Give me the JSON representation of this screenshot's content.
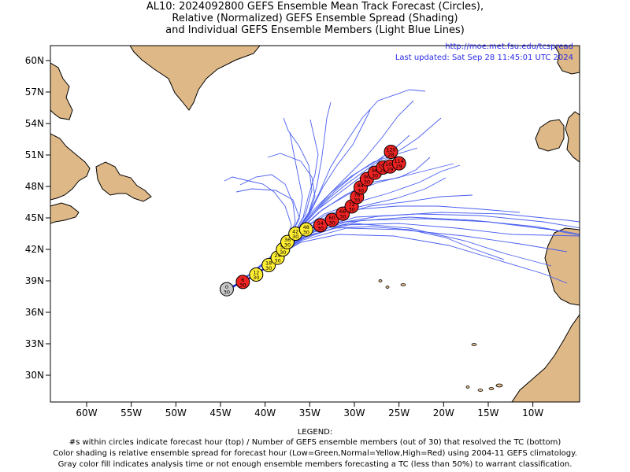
{
  "header": {
    "title_line1": "AL10: 2024092800 GEFS Ensemble Mean Track Forecast (Circles),",
    "title_line2": "Relative (Normalized) GEFS Ensemble Spread (Shading)",
    "title_line3": "and Individual GEFS Ensemble Members (Light Blue Lines)"
  },
  "credits": {
    "url": "http://moe.met.fsu.edu/tcspread",
    "updated": "Last updated: Sat Sep 28 11:45:01 UTC 2024"
  },
  "axes": {
    "lat_labels": [
      "60N",
      "57N",
      "54N",
      "51N",
      "48N",
      "45N",
      "42N",
      "39N",
      "36N",
      "33N",
      "30N"
    ],
    "lon_labels": [
      "60W",
      "55W",
      "50W",
      "45W",
      "40W",
      "35W",
      "30W",
      "25W",
      "20W",
      "15W",
      "10W"
    ]
  },
  "colors": {
    "land": "#deb887",
    "ocean": "#ffffff",
    "member_line": "#4a5ff0",
    "mean_line": "#1a24c8",
    "low_spread": "#3cb043",
    "normal_spread": "#ffee33",
    "high_spread": "#ee2222",
    "analysis_gray": "#c8c8c8"
  },
  "forecast_points": [
    {
      "hour": "0",
      "members": "30",
      "spread": "gray",
      "lon": -44.3,
      "lat": 38.2
    },
    {
      "hour": "6",
      "members": "30",
      "spread": "high",
      "lon": -42.5,
      "lat": 38.9
    },
    {
      "hour": "12",
      "members": "30",
      "spread": "normal",
      "lon": -41.0,
      "lat": 39.6
    },
    {
      "hour": "18",
      "members": "30",
      "spread": "normal",
      "lon": -39.6,
      "lat": 40.5
    },
    {
      "hour": "24",
      "members": "30",
      "spread": "normal",
      "lon": -38.6,
      "lat": 41.2
    },
    {
      "hour": "30",
      "members": "30",
      "spread": "normal",
      "lon": -38.0,
      "lat": 42.0
    },
    {
      "hour": "36",
      "members": "30",
      "spread": "normal",
      "lon": -37.5,
      "lat": 42.7
    },
    {
      "hour": "42",
      "members": "30",
      "spread": "normal",
      "lon": -36.6,
      "lat": 43.5
    },
    {
      "hour": "48",
      "members": "30",
      "spread": "normal",
      "lon": -35.4,
      "lat": 43.9
    },
    {
      "hour": "54",
      "members": "30",
      "spread": "high",
      "lon": -33.8,
      "lat": 44.3
    },
    {
      "hour": "60",
      "members": "30",
      "spread": "high",
      "lon": -32.5,
      "lat": 44.8
    },
    {
      "hour": "66",
      "members": "30",
      "spread": "high",
      "lon": -31.3,
      "lat": 45.4
    },
    {
      "hour": "72",
      "members": "30",
      "spread": "high",
      "lon": -30.3,
      "lat": 46.1
    },
    {
      "hour": "78",
      "members": "30",
      "spread": "high",
      "lon": -29.7,
      "lat": 47.0
    },
    {
      "hour": "84",
      "members": "30",
      "spread": "high",
      "lon": -29.3,
      "lat": 47.9
    },
    {
      "hour": "90",
      "members": "30",
      "spread": "high",
      "lon": -28.6,
      "lat": 48.7
    },
    {
      "hour": "96",
      "members": "30",
      "spread": "high",
      "lon": -27.7,
      "lat": 49.3
    },
    {
      "hour": "102",
      "members": "29",
      "spread": "high",
      "lon": -26.8,
      "lat": 49.8
    },
    {
      "hour": "108",
      "members": "29",
      "spread": "high",
      "lon": -26.0,
      "lat": 49.9
    },
    {
      "hour": "114",
      "members": "29",
      "spread": "high",
      "lon": -25.0,
      "lat": 50.2
    },
    {
      "hour": "120",
      "members": "28",
      "spread": "high",
      "lon": -25.9,
      "lat": 51.3
    }
  ],
  "legend": {
    "heading": "LEGEND:",
    "line1": "#s within circles indicate forecast hour (top) / Number of GEFS ensemble members (out of 30) that resolved the TC (bottom)",
    "line2": "Color shading is relative ensemble spread for forecast hour (Low=Green,Normal=Yellow,High=Red) using 2004-11 GEFS climatology.",
    "line3": "Gray color fill indicates analysis time or not enough ensemble members forecasting a TC (less than 50%) to warrant classification."
  }
}
